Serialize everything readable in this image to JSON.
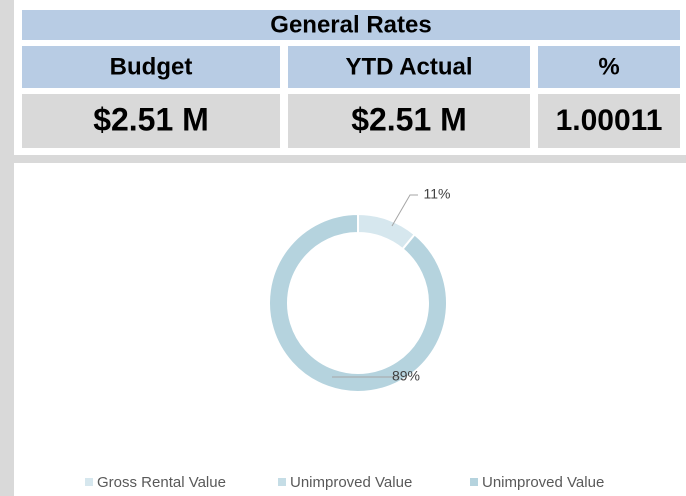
{
  "table": {
    "title": "General Rates",
    "headers": [
      "Budget",
      "YTD Actual",
      "%"
    ],
    "values": [
      "$2.51 M",
      "$2.51 M",
      "1.00011"
    ]
  },
  "chart_data": {
    "type": "donut",
    "categories": [
      "Gross Rental Value",
      "Unimproved Value",
      "Unimproved Value"
    ],
    "values": [
      11,
      0,
      89
    ],
    "value_labels": [
      "11%",
      null,
      "89%"
    ],
    "colors": [
      "#d6e7ee",
      "#c5dde6",
      "#b5d3de"
    ]
  }
}
